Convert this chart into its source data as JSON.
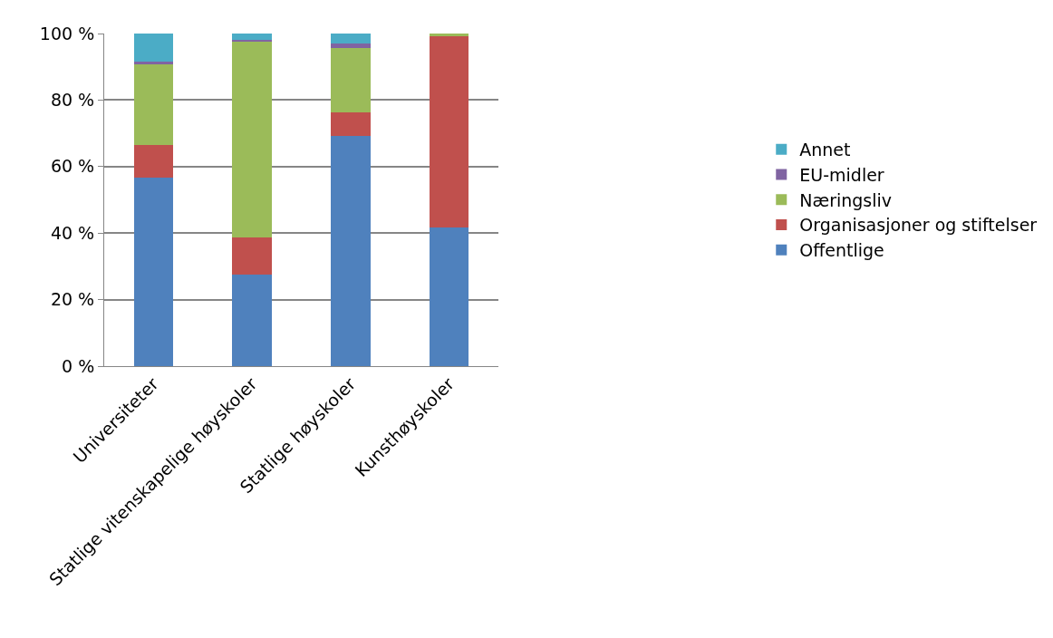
{
  "chart_data": {
    "type": "bar",
    "stacked": true,
    "categories": [
      "Universiteter",
      "Statlige vitenskapelige høyskoler",
      "Statlige høyskoler",
      "Kunsthøyskoler"
    ],
    "series": [
      {
        "name": "Offentlige",
        "color": "#4f81bd",
        "values": [
          56.7,
          27.4,
          69.3,
          41.7
        ]
      },
      {
        "name": "Organisasjoner og stiftelser",
        "color": "#c0504d",
        "values": [
          9.9,
          11.2,
          6.9,
          57.5
        ]
      },
      {
        "name": "Næringsliv",
        "color": "#9bbb59",
        "values": [
          24.1,
          59.1,
          19.4,
          0.8
        ]
      },
      {
        "name": "EU-midler",
        "color": "#8064a2",
        "values": [
          0.8,
          0.4,
          1.4,
          0
        ]
      },
      {
        "name": "Annet",
        "color": "#4bacc6",
        "values": [
          8.5,
          1.9,
          3.0,
          0
        ]
      }
    ],
    "ylim": [
      0,
      100
    ],
    "yticks": [
      {
        "value": 0,
        "label": "0 %"
      },
      {
        "value": 20,
        "label": "20 %"
      },
      {
        "value": 40,
        "label": "40 %"
      },
      {
        "value": 60,
        "label": "60 %"
      },
      {
        "value": 80,
        "label": "80 %"
      },
      {
        "value": 100,
        "label": "100 %"
      }
    ],
    "grid": "y",
    "legend": "right"
  }
}
